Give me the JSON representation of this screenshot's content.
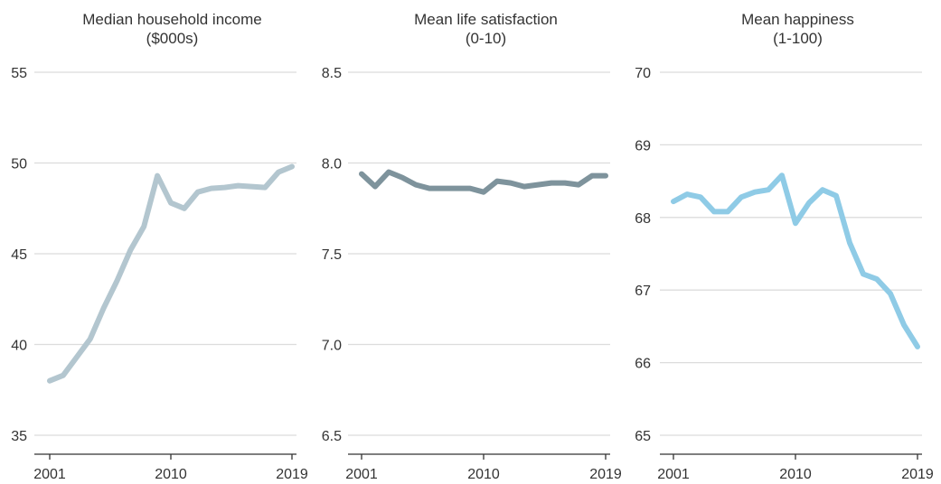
{
  "chart_data": [
    {
      "type": "line",
      "title_lines": [
        "Median household income",
        "($000s)"
      ],
      "color": "#b3c6cf",
      "ylim": [
        35,
        55
      ],
      "yticks": [
        35,
        40,
        45,
        50,
        55
      ],
      "ytick_labels": [
        "35",
        "40",
        "45",
        "50",
        "55"
      ],
      "xlim": [
        2001,
        2019
      ],
      "xticks": [
        2001,
        2010,
        2019
      ],
      "xtick_labels": [
        "2001",
        "2010",
        "2019"
      ],
      "grid": true,
      "x": [
        2001,
        2002,
        2003,
        2004,
        2005,
        2006,
        2007,
        2008,
        2009,
        2010,
        2011,
        2012,
        2013,
        2014,
        2015,
        2016,
        2017,
        2018,
        2019
      ],
      "series": [
        {
          "values": [
            38.0,
            38.3,
            39.3,
            40.3,
            42.0,
            43.5,
            45.2,
            46.5,
            49.3,
            47.8,
            47.5,
            48.4,
            48.6,
            48.65,
            48.75,
            48.7,
            48.65,
            49.5,
            49.8
          ]
        }
      ]
    },
    {
      "type": "line",
      "title_lines": [
        "Mean life satisfaction",
        "(0-10)"
      ],
      "color": "#7e939c",
      "ylim": [
        6.5,
        8.5
      ],
      "yticks": [
        6.5,
        7.0,
        7.5,
        8.0,
        8.5
      ],
      "ytick_labels": [
        "6.5",
        "7.0",
        "7.5",
        "8.0",
        "8.5"
      ],
      "xlim": [
        2001,
        2019
      ],
      "xticks": [
        2001,
        2010,
        2019
      ],
      "xtick_labels": [
        "2001",
        "2010",
        "2019"
      ],
      "grid": true,
      "x": [
        2001,
        2002,
        2003,
        2004,
        2005,
        2006,
        2007,
        2008,
        2009,
        2010,
        2011,
        2012,
        2013,
        2014,
        2015,
        2016,
        2017,
        2018,
        2019
      ],
      "series": [
        {
          "values": [
            7.94,
            7.87,
            7.95,
            7.92,
            7.88,
            7.86,
            7.86,
            7.86,
            7.86,
            7.84,
            7.9,
            7.89,
            7.87,
            7.88,
            7.89,
            7.89,
            7.88,
            7.93,
            7.93
          ]
        }
      ]
    },
    {
      "type": "line",
      "title_lines": [
        "Mean happiness",
        "(1-100)"
      ],
      "color": "#8fcbe6",
      "ylim": [
        65,
        70
      ],
      "yticks": [
        65,
        66,
        67,
        68,
        69,
        70
      ],
      "ytick_labels": [
        "65",
        "66",
        "67",
        "68",
        "69",
        "70"
      ],
      "xlim": [
        2001,
        2019
      ],
      "xticks": [
        2001,
        2010,
        2019
      ],
      "xtick_labels": [
        "2001",
        "2010",
        "2019"
      ],
      "grid": true,
      "x": [
        2001,
        2002,
        2003,
        2004,
        2005,
        2006,
        2007,
        2008,
        2009,
        2010,
        2011,
        2012,
        2013,
        2014,
        2015,
        2016,
        2017,
        2018,
        2019
      ],
      "series": [
        {
          "values": [
            68.22,
            68.32,
            68.28,
            68.08,
            68.08,
            68.28,
            68.35,
            68.38,
            68.58,
            67.92,
            68.2,
            68.38,
            68.3,
            67.65,
            67.22,
            67.15,
            66.95,
            66.52,
            66.22
          ]
        }
      ]
    }
  ]
}
